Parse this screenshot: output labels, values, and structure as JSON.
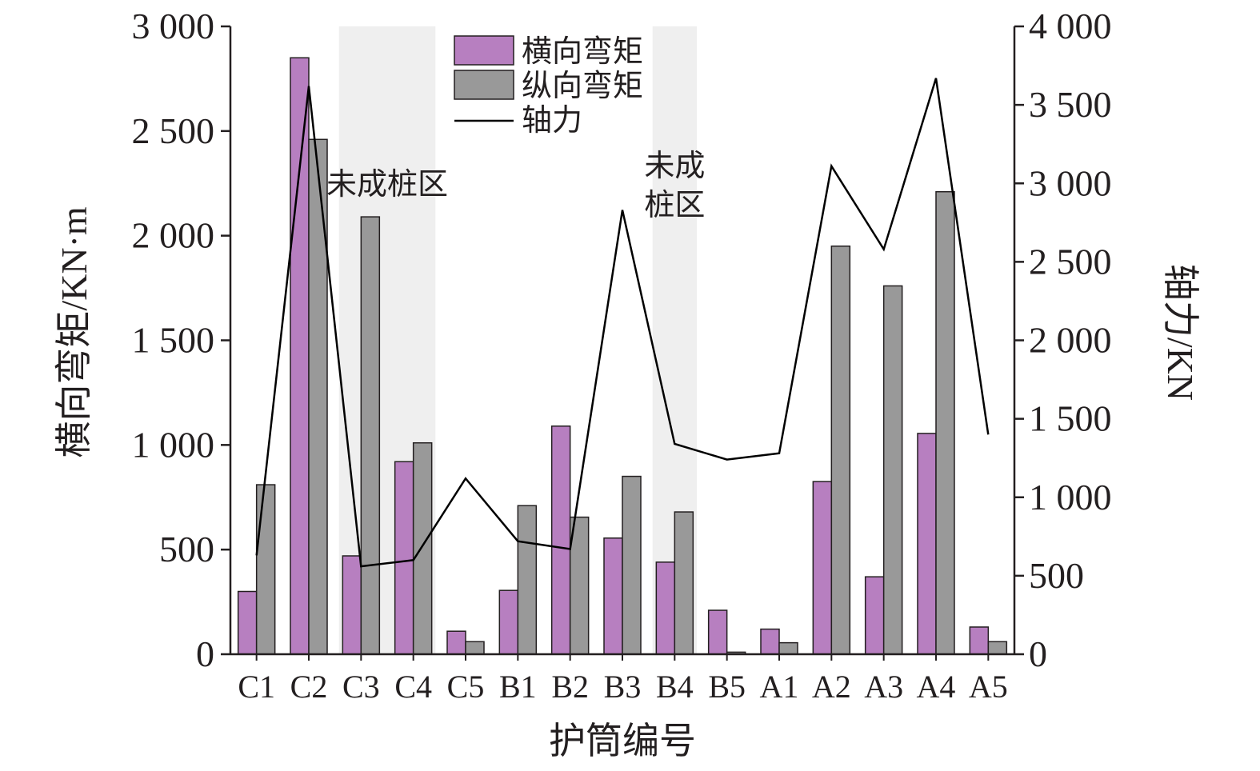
{
  "chart_data": {
    "type": "bar",
    "xlabel": "护筒编号",
    "ylabel_left": "横向弯矩/KN·m",
    "ylabel_right": "轴力/KN",
    "ylim_left": [
      0,
      3000
    ],
    "ylim_right": [
      0,
      4000
    ],
    "yticks_left": [
      0,
      500,
      1000,
      1500,
      2000,
      2500,
      3000
    ],
    "yticks_left_labels": [
      "0",
      "500",
      "1 000",
      "1 500",
      "2 000",
      "2 500",
      "3 000"
    ],
    "yticks_right": [
      0,
      500,
      1000,
      1500,
      2000,
      2500,
      3000,
      3500,
      4000
    ],
    "yticks_right_labels": [
      "0",
      "500",
      "1 000",
      "1 500",
      "2 000",
      "2 500",
      "3 000",
      "3 500",
      "4 000"
    ],
    "categories": [
      "C1",
      "C2",
      "C3",
      "C4",
      "C5",
      "B1",
      "B2",
      "B3",
      "B4",
      "B5",
      "A1",
      "A2",
      "A3",
      "A4",
      "A5"
    ],
    "series": [
      {
        "name": "横向弯矩",
        "kind": "bar",
        "axis": "left",
        "color": "#b77fc0",
        "values": [
          300,
          2850,
          470,
          920,
          110,
          305,
          1090,
          555,
          440,
          210,
          120,
          825,
          370,
          1055,
          130
        ]
      },
      {
        "name": "纵向弯矩",
        "kind": "bar",
        "axis": "left",
        "color": "#999999",
        "values": [
          810,
          2460,
          2090,
          1010,
          60,
          710,
          655,
          850,
          680,
          10,
          55,
          1950,
          1760,
          2210,
          60
        ]
      },
      {
        "name": "轴力",
        "kind": "line",
        "axis": "right",
        "color": "#000000",
        "values": [
          630,
          3620,
          560,
          600,
          1120,
          720,
          670,
          2830,
          1340,
          1240,
          1280,
          3110,
          2580,
          3670,
          1400
        ]
      }
    ],
    "zones": [
      {
        "label": "未成桩区",
        "from": "C3",
        "to": "C4",
        "color": "#efefef"
      },
      {
        "label_lines": [
          "未成",
          "桩区"
        ],
        "from": "B4",
        "to": "B4",
        "color": "#efefef"
      }
    ],
    "legend_placement": "top-center",
    "grid": false
  }
}
